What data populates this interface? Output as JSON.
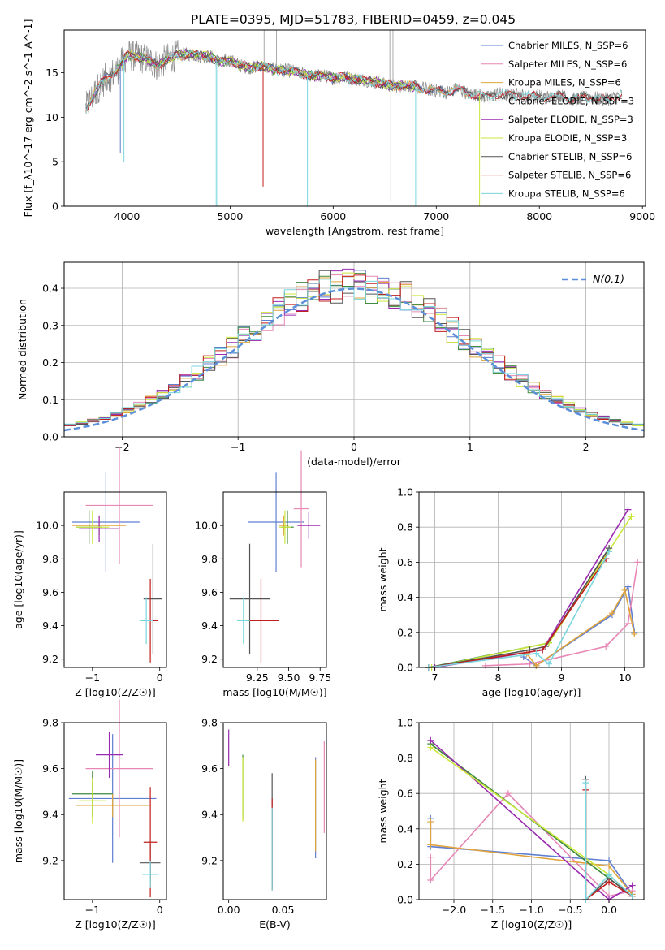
{
  "figure": {
    "title": "PLATE=0395, MJD=51783, FIBERID=0459, z=0.045"
  },
  "chart_data": [
    {
      "id": "spectrum",
      "type": "line",
      "xlabel": "wavelength [Angstrom, rest frame]",
      "ylabel": "Flux [f_λ10^-17 erg cm^-2 s^-1 A^-1]",
      "xlim": [
        3390,
        9030
      ],
      "ylim": [
        0,
        19.8
      ],
      "xticks": [
        4000,
        5000,
        6000,
        7000,
        8000,
        9000
      ],
      "yticks": [
        0,
        5,
        10,
        15
      ],
      "grid": false,
      "legend_position": "top-right",
      "series": [
        {
          "name": "Chabrier MILES, N_SSP=6",
          "color": "#5f7fd1",
          "x_range": [
            3600,
            7420
          ]
        },
        {
          "name": "Salpeter MILES, N_SSP=6",
          "color": "#e687b5",
          "x_range": [
            3600,
            7420
          ]
        },
        {
          "name": "Kroupa MILES, N_SSP=6",
          "color": "#e0a43c",
          "x_range": [
            3600,
            7420
          ]
        },
        {
          "name": "Chabrier ELODIE, N_SSP=3",
          "color": "#3f8a3c",
          "x_range": [
            3900,
            6800
          ]
        },
        {
          "name": "Salpeter ELODIE, N_SSP=3",
          "color": "#9a2ab0",
          "x_range": [
            3900,
            6800
          ]
        },
        {
          "name": "Kroupa ELODIE, N_SSP=3",
          "color": "#c9e83a",
          "x_range": [
            3900,
            6800
          ]
        },
        {
          "name": "Chabrier STELIB, N_SSP=6",
          "color": "#555555",
          "x_range": [
            3600,
            8800
          ]
        },
        {
          "name": "Salpeter STELIB, N_SSP=6",
          "color": "#c11f1f",
          "x_range": [
            3600,
            8800
          ]
        },
        {
          "name": "Kroupa STELIB, N_SSP=6",
          "color": "#7ad6dc",
          "x_range": [
            3600,
            8800
          ]
        }
      ],
      "data_color": "#888888",
      "data_points": [
        [
          3600,
          11.0
        ],
        [
          3700,
          13.0
        ],
        [
          3800,
          14.5
        ],
        [
          3900,
          15.2
        ],
        [
          4000,
          17.0
        ],
        [
          4100,
          16.8
        ],
        [
          4200,
          16.5
        ],
        [
          4300,
          15.8
        ],
        [
          4400,
          16.6
        ],
        [
          4500,
          17.0
        ],
        [
          4600,
          17.1
        ],
        [
          4700,
          16.9
        ],
        [
          4800,
          16.9
        ],
        [
          4900,
          16.2
        ],
        [
          5000,
          16.4
        ],
        [
          5100,
          15.8
        ],
        [
          5200,
          15.6
        ],
        [
          5300,
          15.8
        ],
        [
          5400,
          15.4
        ],
        [
          5500,
          15.3
        ],
        [
          5600,
          15.2
        ],
        [
          5700,
          14.9
        ],
        [
          5800,
          14.6
        ],
        [
          5900,
          14.7
        ],
        [
          6000,
          14.4
        ],
        [
          6100,
          14.5
        ],
        [
          6200,
          14.3
        ],
        [
          6300,
          14.2
        ],
        [
          6400,
          14.0
        ],
        [
          6500,
          13.7
        ],
        [
          6600,
          13.5
        ],
        [
          6700,
          13.6
        ],
        [
          6800,
          13.4
        ],
        [
          6900,
          13.2
        ],
        [
          7000,
          13.0
        ],
        [
          7100,
          12.8
        ],
        [
          7200,
          13.2
        ],
        [
          7300,
          12.7
        ],
        [
          7400,
          12.5
        ],
        [
          7500,
          12.2
        ],
        [
          7600,
          12.7
        ],
        [
          7700,
          12.4
        ],
        [
          7800,
          12.6
        ],
        [
          7900,
          12.3
        ],
        [
          8000,
          12.4
        ],
        [
          8100,
          12.2
        ],
        [
          8200,
          12.5
        ],
        [
          8300,
          12.0
        ],
        [
          8400,
          12.1
        ],
        [
          8500,
          12.3
        ],
        [
          8600,
          12.0
        ],
        [
          8700,
          12.1
        ],
        [
          8800,
          12.6
        ]
      ],
      "absorption_dips": [
        {
          "x": 3935,
          "y": 6.0
        },
        {
          "x": 3970,
          "y": 5.0
        },
        {
          "x": 4865,
          "y": 0
        },
        {
          "x": 4880,
          "y": 0
        },
        {
          "x": 5320,
          "y": 2.2
        },
        {
          "x": 5750,
          "y": 0
        },
        {
          "x": 6560,
          "y": 0.5
        },
        {
          "x": 6800,
          "y": 0
        },
        {
          "x": 7420,
          "y": 0
        }
      ]
    },
    {
      "id": "residuals",
      "type": "bar",
      "xlabel": "(data-model)/error",
      "ylabel": "Normed distribution",
      "xlim": [
        -2.5,
        2.5
      ],
      "ylim": [
        0,
        0.47
      ],
      "xticks": [
        -2,
        -1,
        0,
        1,
        2
      ],
      "yticks": [
        0.0,
        0.1,
        0.2,
        0.3,
        0.4
      ],
      "grid": true,
      "legend_position": "top-right",
      "reference_curve": {
        "name": "N(0,1)",
        "color": "#5b8fd9",
        "style": "dashed"
      },
      "bin_width": 0.1,
      "bins_start": -2.5,
      "series": [
        {
          "name": "Chabrier MILES",
          "color": "#5f7fd1"
        },
        {
          "name": "Salpeter MILES",
          "color": "#e687b5"
        },
        {
          "name": "Kroupa MILES",
          "color": "#e0a43c"
        },
        {
          "name": "Chabrier ELODIE",
          "color": "#3f8a3c"
        },
        {
          "name": "Salpeter ELODIE",
          "color": "#9a2ab0"
        },
        {
          "name": "Kroupa ELODIE",
          "color": "#c9e83a"
        },
        {
          "name": "Chabrier STELIB",
          "color": "#555555"
        },
        {
          "name": "Salpeter STELIB",
          "color": "#c11f1f"
        },
        {
          "name": "Kroupa STELIB",
          "color": "#7ad6dc"
        }
      ]
    },
    {
      "id": "age-vs-Z",
      "type": "scatter",
      "xlabel": "Z [log10(Z/Z☉)]",
      "ylabel": "age  [log10(age/yr)]",
      "xlim": [
        -1.42,
        0.1
      ],
      "ylim": [
        9.15,
        10.2
      ],
      "xticks": [
        -1,
        0
      ],
      "yticks": [
        9.2,
        9.4,
        9.6,
        9.8,
        10.0
      ],
      "points": [
        {
          "color": "#5f7fd1",
          "x": -0.8,
          "y": 10.02,
          "xe": 0.5,
          "ye": 0.3
        },
        {
          "color": "#e687b5",
          "x": -0.6,
          "y": 10.12,
          "xe": 0.5,
          "ye": 0.35
        },
        {
          "color": "#e0a43c",
          "x": -0.9,
          "y": 10.0,
          "xe": 0.4,
          "ye": 0.06
        },
        {
          "color": "#3f8a3c",
          "x": -1.05,
          "y": 9.99,
          "xe": 0.2,
          "ye": 0.1
        },
        {
          "color": "#9a2ab0",
          "x": -0.9,
          "y": 9.98,
          "xe": 0.3,
          "ye": 0.08
        },
        {
          "color": "#c9e83a",
          "x": -1.0,
          "y": 9.99,
          "xe": 0.25,
          "ye": 0.1
        },
        {
          "color": "#555555",
          "x": -0.1,
          "y": 9.56,
          "xe": 0.14,
          "ye": 0.33
        },
        {
          "color": "#c11f1f",
          "x": -0.14,
          "y": 9.43,
          "xe": 0.12,
          "ye": 0.25
        },
        {
          "color": "#7ad6dc",
          "x": -0.2,
          "y": 9.43,
          "xe": 0.1,
          "ye": 0.14
        }
      ]
    },
    {
      "id": "age-vs-mass",
      "type": "scatter",
      "xlabel": "mass [log10(M/M☉)]",
      "ylabel": "",
      "xlim": [
        8.98,
        9.8
      ],
      "ylim": [
        9.15,
        10.2
      ],
      "xticks": [
        9.25,
        9.5,
        9.75
      ],
      "yticks": [
        9.2,
        9.4,
        9.6,
        9.8,
        10.0
      ],
      "points": [
        {
          "color": "#5f7fd1",
          "x": 9.4,
          "y": 10.02,
          "xe": 0.22,
          "ye": 0.3
        },
        {
          "color": "#e687b5",
          "x": 9.6,
          "y": 10.1,
          "xe": 0.06,
          "ye": 0.35
        },
        {
          "color": "#e0a43c",
          "x": 9.46,
          "y": 10.0,
          "xe": 0.04,
          "ye": 0.06
        },
        {
          "color": "#3f8a3c",
          "x": 9.49,
          "y": 9.99,
          "xe": 0.05,
          "ye": 0.1
        },
        {
          "color": "#9a2ab0",
          "x": 9.66,
          "y": 10.0,
          "xe": 0.09,
          "ye": 0.08
        },
        {
          "color": "#c9e83a",
          "x": 9.47,
          "y": 9.99,
          "xe": 0.05,
          "ye": 0.1
        },
        {
          "color": "#555555",
          "x": 9.19,
          "y": 9.56,
          "xe": 0.16,
          "ye": 0.33
        },
        {
          "color": "#c11f1f",
          "x": 9.28,
          "y": 9.43,
          "xe": 0.14,
          "ye": 0.25
        },
        {
          "color": "#7ad6dc",
          "x": 9.14,
          "y": 9.43,
          "xe": 0.05,
          "ye": 0.14
        }
      ]
    },
    {
      "id": "mass-weight-vs-age",
      "type": "line",
      "xlabel": "age  [log10(age/yr)]",
      "ylabel": "mass weight",
      "xlim": [
        6.75,
        10.3
      ],
      "ylim": [
        0,
        1.0
      ],
      "xticks": [
        7,
        8,
        9,
        10
      ],
      "yticks": [
        0.0,
        0.2,
        0.4,
        0.6,
        0.8,
        1.0
      ],
      "grid": true,
      "series": [
        {
          "color": "#5f7fd1",
          "x": [
            8.4,
            8.6,
            9.8,
            10.05,
            10.15
          ],
          "y": [
            0.06,
            0.01,
            0.3,
            0.46,
            0.2
          ]
        },
        {
          "color": "#e687b5",
          "x": [
            7.8,
            8.5,
            9.7,
            10.05,
            10.2
          ],
          "y": [
            0.01,
            0.02,
            0.12,
            0.25,
            0.6
          ]
        },
        {
          "color": "#e0a43c",
          "x": [
            8.45,
            8.6,
            9.8,
            10.0,
            10.15
          ],
          "y": [
            0.08,
            0.01,
            0.31,
            0.44,
            0.19
          ]
        },
        {
          "color": "#3f8a3c",
          "x": [
            6.9,
            8.8,
            9.75
          ],
          "y": [
            0.0,
            0.14,
            0.68
          ]
        },
        {
          "color": "#9a2ab0",
          "x": [
            7.0,
            8.7,
            10.05
          ],
          "y": [
            0.0,
            0.1,
            0.9
          ]
        },
        {
          "color": "#c9e83a",
          "x": [
            6.95,
            8.8,
            10.1
          ],
          "y": [
            0.0,
            0.14,
            0.86
          ]
        },
        {
          "color": "#555555",
          "x": [
            6.9,
            8.5,
            8.75,
            9.75
          ],
          "y": [
            0.0,
            0.1,
            0.12,
            0.68
          ]
        },
        {
          "color": "#c11f1f",
          "x": [
            6.9,
            8.7,
            9.7
          ],
          "y": [
            0.0,
            0.1,
            0.62
          ]
        },
        {
          "color": "#7ad6dc",
          "x": [
            6.9,
            8.6,
            8.8,
            9.75
          ],
          "y": [
            0.0,
            0.08,
            0.02,
            0.66
          ]
        }
      ]
    },
    {
      "id": "mass-vs-Z",
      "type": "scatter",
      "xlabel": "Z [log10(Z/Z☉)]",
      "ylabel": "mass [log10(M/M☉)]",
      "xlim": [
        -1.42,
        0.1
      ],
      "ylim": [
        9.03,
        9.8
      ],
      "xticks": [
        -1,
        0
      ],
      "yticks": [
        9.2,
        9.4,
        9.6,
        9.8
      ],
      "points": [
        {
          "color": "#5f7fd1",
          "x": -0.7,
          "y": 9.47,
          "xe": 0.65,
          "ye": 0.28
        },
        {
          "color": "#e687b5",
          "x": -0.6,
          "y": 9.6,
          "xe": 0.5,
          "ye": 0.3
        },
        {
          "color": "#e0a43c",
          "x": -0.7,
          "y": 9.44,
          "xe": 0.55,
          "ye": 0.05
        },
        {
          "color": "#3f8a3c",
          "x": -1.0,
          "y": 9.49,
          "xe": 0.3,
          "ye": 0.1
        },
        {
          "color": "#9a2ab0",
          "x": -0.75,
          "y": 9.66,
          "xe": 0.2,
          "ye": 0.1
        },
        {
          "color": "#c9e83a",
          "x": -1.0,
          "y": 9.46,
          "xe": 0.2,
          "ye": 0.1
        },
        {
          "color": "#555555",
          "x": -0.14,
          "y": 9.19,
          "xe": 0.15,
          "ye": 0.08
        },
        {
          "color": "#c11f1f",
          "x": -0.14,
          "y": 9.28,
          "xe": 0.1,
          "ye": 0.24
        },
        {
          "color": "#7ad6dc",
          "x": -0.14,
          "y": 9.14,
          "xe": 0.12,
          "ye": 0.06
        }
      ]
    },
    {
      "id": "mass-vs-EBV",
      "type": "scatter",
      "xlabel": "E(B-V)",
      "ylabel": "",
      "xlim": [
        -0.005,
        0.09
      ],
      "ylim": [
        9.03,
        9.8
      ],
      "xticks": [
        0.0,
        0.05
      ],
      "yticks": [
        9.2,
        9.4,
        9.6,
        9.8
      ],
      "points": [
        {
          "color": "#5f7fd1",
          "x": 0.08,
          "y": 9.43,
          "xe": 0,
          "ye": 0.22
        },
        {
          "color": "#e687b5",
          "x": 0.088,
          "y": 9.52,
          "xe": 0,
          "ye": 0.2
        },
        {
          "color": "#e0a43c",
          "x": 0.08,
          "y": 9.44,
          "xe": 0,
          "ye": 0.2
        },
        {
          "color": "#3f8a3c",
          "x": 0.013,
          "y": 9.52,
          "xe": 0,
          "ye": 0.14
        },
        {
          "color": "#9a2ab0",
          "x": 0.0,
          "y": 9.69,
          "xe": 0,
          "ye": 0.08
        },
        {
          "color": "#c9e83a",
          "x": 0.013,
          "y": 9.51,
          "xe": 0,
          "ye": 0.14
        },
        {
          "color": "#555555",
          "x": 0.04,
          "y": 9.33,
          "xe": 0,
          "ye": 0.25
        },
        {
          "color": "#c11f1f",
          "x": 0.04,
          "y": 9.27,
          "xe": 0,
          "ye": 0.2
        },
        {
          "color": "#7ad6dc",
          "x": 0.04,
          "y": 9.25,
          "xe": 0,
          "ye": 0.18
        }
      ]
    },
    {
      "id": "mass-weight-vs-Z",
      "type": "line",
      "xlabel": "Z [log10(Z/Z☉)]",
      "ylabel": "mass weight",
      "xlim": [
        -2.45,
        0.45
      ],
      "ylim": [
        0,
        1.0
      ],
      "xticks": [
        -2.0,
        -1.5,
        -1.0,
        -0.5,
        0.0
      ],
      "yticks": [
        0.0,
        0.2,
        0.4,
        0.6,
        0.8,
        1.0
      ],
      "grid": true,
      "series": [
        {
          "color": "#5f7fd1",
          "x": [
            -2.3,
            -2.3,
            0.0,
            0.3
          ],
          "y": [
            0.46,
            0.3,
            0.22,
            0.03
          ]
        },
        {
          "color": "#e687b5",
          "x": [
            -2.3,
            -2.3,
            -1.3,
            0.0,
            0.3
          ],
          "y": [
            0.24,
            0.11,
            0.6,
            0.02,
            0.05
          ]
        },
        {
          "color": "#e0a43c",
          "x": [
            -2.3,
            -2.3,
            0.0,
            0.3
          ],
          "y": [
            0.44,
            0.31,
            0.19,
            0.03
          ]
        },
        {
          "color": "#3f8a3c",
          "x": [
            -2.3,
            0.0,
            0.3
          ],
          "y": [
            0.88,
            0.12,
            0.02
          ]
        },
        {
          "color": "#9a2ab0",
          "x": [
            -2.3,
            0.0,
            0.3
          ],
          "y": [
            0.9,
            0.0,
            0.08
          ]
        },
        {
          "color": "#c9e83a",
          "x": [
            -2.3,
            0.0,
            0.3
          ],
          "y": [
            0.86,
            0.14,
            0.02
          ]
        },
        {
          "color": "#555555",
          "x": [
            -0.3,
            -0.3,
            0.0,
            0.3
          ],
          "y": [
            0.68,
            0.0,
            0.12,
            0.02
          ]
        },
        {
          "color": "#c11f1f",
          "x": [
            -0.3,
            -0.3,
            0.0,
            0.3
          ],
          "y": [
            0.62,
            0.0,
            0.1,
            0.02
          ]
        },
        {
          "color": "#7ad6dc",
          "x": [
            -0.3,
            -0.3,
            0.0,
            0.3
          ],
          "y": [
            0.66,
            0.0,
            0.14,
            0.02
          ]
        }
      ]
    }
  ]
}
